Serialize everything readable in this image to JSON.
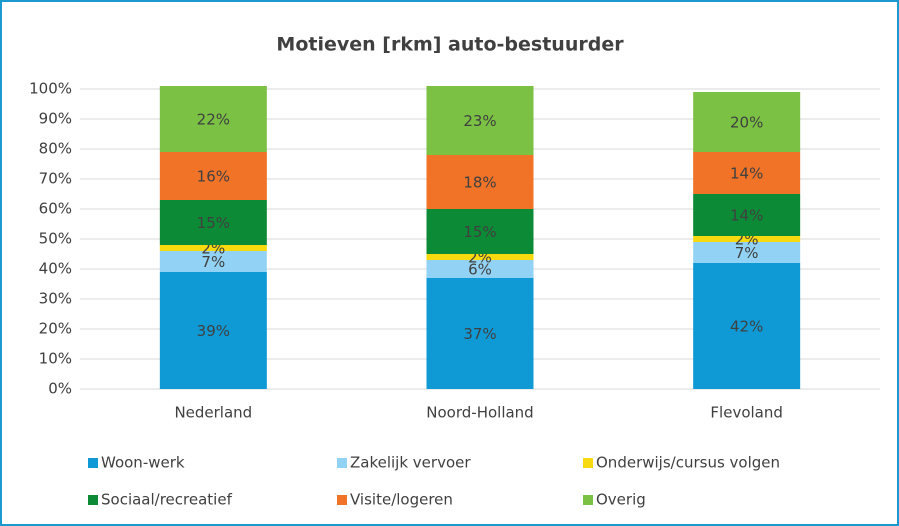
{
  "chart_data": {
    "type": "stacked_bar",
    "title": "Motieven [rkm] auto-bestuurder",
    "categories": [
      "Nederland",
      "Noord-Holland",
      "Flevoland"
    ],
    "series": [
      {
        "name": "Woon-werk",
        "color": "#0f9ad6",
        "values": [
          39,
          37,
          42
        ],
        "value_labels": [
          "39%",
          "37%",
          "42%"
        ]
      },
      {
        "name": "Zakelijk vervoer",
        "color": "#92d2f4",
        "values": [
          7,
          6,
          7
        ],
        "value_labels": [
          "7%",
          "6%",
          "7%"
        ]
      },
      {
        "name": "Onderwijs/cursus volgen",
        "color": "#f7d90f",
        "values": [
          2,
          2,
          2
        ],
        "value_labels": [
          "2%",
          "2%",
          "2%"
        ]
      },
      {
        "name": "Sociaal/recreatief",
        "color": "#0c8a36",
        "values": [
          15,
          15,
          14
        ],
        "value_labels": [
          "15%",
          "15%",
          "14%"
        ]
      },
      {
        "name": "Visite/logeren",
        "color": "#f07328",
        "values": [
          16,
          18,
          14
        ],
        "value_labels": [
          "16%",
          "18%",
          "14%"
        ]
      },
      {
        "name": "Overig",
        "color": "#7bc143",
        "values": [
          22,
          23,
          20
        ],
        "value_labels": [
          "22%",
          "23%",
          "20%"
        ]
      }
    ],
    "ylim": [
      0,
      100
    ],
    "yticks": [
      {
        "value": 0,
        "label": "0%"
      },
      {
        "value": 10,
        "label": "10%"
      },
      {
        "value": 20,
        "label": "20%"
      },
      {
        "value": 30,
        "label": "30%"
      },
      {
        "value": 40,
        "label": "40%"
      },
      {
        "value": 50,
        "label": "50%"
      },
      {
        "value": 60,
        "label": "60%"
      },
      {
        "value": 70,
        "label": "70%"
      },
      {
        "value": 80,
        "label": "80%"
      },
      {
        "value": 90,
        "label": "90%"
      },
      {
        "value": 100,
        "label": "100%"
      }
    ],
    "grid": true
  }
}
